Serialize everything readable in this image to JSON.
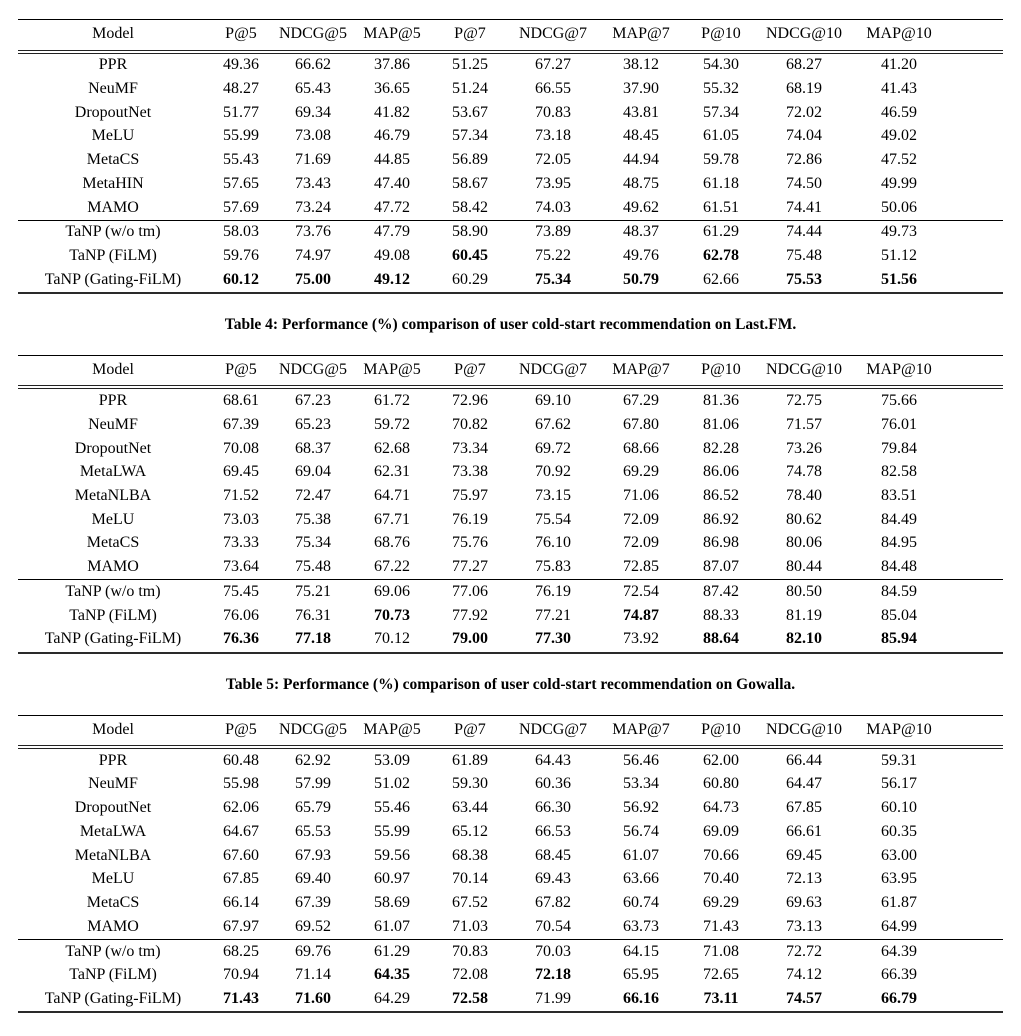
{
  "page": {
    "background": "#ffffff",
    "text_color": "#000000"
  },
  "columns": [
    "Model",
    "P@5",
    "NDCG@5",
    "MAP@5",
    "P@7",
    "NDCG@7",
    "MAP@7",
    "P@10",
    "NDCG@10",
    "MAP@10"
  ],
  "tables": [
    {
      "id": "lastfm",
      "caption": "Table 4: Performance (%) comparison of user cold-start recommendation on Last.FM.",
      "rows": [
        {
          "model": "PPR",
          "values": [
            "49.36",
            "66.62",
            "37.86",
            "51.25",
            "67.27",
            "38.12",
            "54.30",
            "68.27",
            "41.20"
          ],
          "bold": [],
          "rule_above": false
        },
        {
          "model": "NeuMF",
          "values": [
            "48.27",
            "65.43",
            "36.65",
            "51.24",
            "66.55",
            "37.90",
            "55.32",
            "68.19",
            "41.43"
          ],
          "bold": [],
          "rule_above": false
        },
        {
          "model": "DropoutNet",
          "values": [
            "51.77",
            "69.34",
            "41.82",
            "53.67",
            "70.83",
            "43.81",
            "57.34",
            "72.02",
            "46.59"
          ],
          "bold": [],
          "rule_above": false
        },
        {
          "model": "MeLU",
          "values": [
            "55.99",
            "73.08",
            "46.79",
            "57.34",
            "73.18",
            "48.45",
            "61.05",
            "74.04",
            "49.02"
          ],
          "bold": [],
          "rule_above": false
        },
        {
          "model": "MetaCS",
          "values": [
            "55.43",
            "71.69",
            "44.85",
            "56.89",
            "72.05",
            "44.94",
            "59.78",
            "72.86",
            "47.52"
          ],
          "bold": [],
          "rule_above": false
        },
        {
          "model": "MetaHIN",
          "values": [
            "57.65",
            "73.43",
            "47.40",
            "58.67",
            "73.95",
            "48.75",
            "61.18",
            "74.50",
            "49.99"
          ],
          "bold": [],
          "rule_above": false
        },
        {
          "model": "MAMO",
          "values": [
            "57.69",
            "73.24",
            "47.72",
            "58.42",
            "74.03",
            "49.62",
            "61.51",
            "74.41",
            "50.06"
          ],
          "bold": [],
          "rule_above": false
        },
        {
          "model": "TaNP (w/o tm)",
          "values": [
            "58.03",
            "73.76",
            "47.79",
            "58.90",
            "73.89",
            "48.37",
            "61.29",
            "74.44",
            "49.73"
          ],
          "bold": [],
          "rule_above": true
        },
        {
          "model": "TaNP (FiLM)",
          "values": [
            "59.76",
            "74.97",
            "49.08",
            "60.45",
            "75.22",
            "49.76",
            "62.78",
            "75.48",
            "51.12"
          ],
          "bold": [
            3,
            6
          ],
          "rule_above": false
        },
        {
          "model": "TaNP (Gating-FiLM)",
          "values": [
            "60.12",
            "75.00",
            "49.12",
            "60.29",
            "75.34",
            "50.79",
            "62.66",
            "75.53",
            "51.56"
          ],
          "bold": [
            0,
            1,
            2,
            4,
            5,
            7,
            8
          ],
          "rule_above": false
        }
      ]
    },
    {
      "id": "gowalla",
      "caption": "Table 5: Performance (%) comparison of user cold-start recommendation on Gowalla.",
      "rows": [
        {
          "model": "PPR",
          "values": [
            "68.61",
            "67.23",
            "61.72",
            "72.96",
            "69.10",
            "67.29",
            "81.36",
            "72.75",
            "75.66"
          ],
          "bold": [],
          "rule_above": false
        },
        {
          "model": "NeuMF",
          "values": [
            "67.39",
            "65.23",
            "59.72",
            "70.82",
            "67.62",
            "67.80",
            "81.06",
            "71.57",
            "76.01"
          ],
          "bold": [],
          "rule_above": false
        },
        {
          "model": "DropoutNet",
          "values": [
            "70.08",
            "68.37",
            "62.68",
            "73.34",
            "69.72",
            "68.66",
            "82.28",
            "73.26",
            "79.84"
          ],
          "bold": [],
          "rule_above": false
        },
        {
          "model": "MetaLWA",
          "values": [
            "69.45",
            "69.04",
            "62.31",
            "73.38",
            "70.92",
            "69.29",
            "86.06",
            "74.78",
            "82.58"
          ],
          "bold": [],
          "rule_above": false
        },
        {
          "model": "MetaNLBA",
          "values": [
            "71.52",
            "72.47",
            "64.71",
            "75.97",
            "73.15",
            "71.06",
            "86.52",
            "78.40",
            "83.51"
          ],
          "bold": [],
          "rule_above": false
        },
        {
          "model": "MeLU",
          "values": [
            "73.03",
            "75.38",
            "67.71",
            "76.19",
            "75.54",
            "72.09",
            "86.92",
            "80.62",
            "84.49"
          ],
          "bold": [],
          "rule_above": false
        },
        {
          "model": "MetaCS",
          "values": [
            "73.33",
            "75.34",
            "68.76",
            "75.76",
            "76.10",
            "72.09",
            "86.98",
            "80.06",
            "84.95"
          ],
          "bold": [],
          "rule_above": false
        },
        {
          "model": "MAMO",
          "values": [
            "73.64",
            "75.48",
            "67.22",
            "77.27",
            "75.83",
            "72.85",
            "87.07",
            "80.44",
            "84.48"
          ],
          "bold": [],
          "rule_above": false
        },
        {
          "model": "TaNP (w/o tm)",
          "values": [
            "75.45",
            "75.21",
            "69.06",
            "77.06",
            "76.19",
            "72.54",
            "87.42",
            "80.50",
            "84.59"
          ],
          "bold": [],
          "rule_above": true
        },
        {
          "model": "TaNP (FiLM)",
          "values": [
            "76.06",
            "76.31",
            "70.73",
            "77.92",
            "77.21",
            "74.87",
            "88.33",
            "81.19",
            "85.04"
          ],
          "bold": [
            2,
            5
          ],
          "rule_above": false
        },
        {
          "model": "TaNP (Gating-FiLM)",
          "values": [
            "76.36",
            "77.18",
            "70.12",
            "79.00",
            "77.30",
            "73.92",
            "88.64",
            "82.10",
            "85.94"
          ],
          "bold": [
            0,
            1,
            3,
            4,
            6,
            7,
            8
          ],
          "rule_above": false
        }
      ]
    },
    {
      "id": "third",
      "caption": "",
      "rows": [
        {
          "model": "PPR",
          "values": [
            "60.48",
            "62.92",
            "53.09",
            "61.89",
            "64.43",
            "56.46",
            "62.00",
            "66.44",
            "59.31"
          ],
          "bold": [],
          "rule_above": false
        },
        {
          "model": "NeuMF",
          "values": [
            "55.98",
            "57.99",
            "51.02",
            "59.30",
            "60.36",
            "53.34",
            "60.80",
            "64.47",
            "56.17"
          ],
          "bold": [],
          "rule_above": false
        },
        {
          "model": "DropoutNet",
          "values": [
            "62.06",
            "65.79",
            "55.46",
            "63.44",
            "66.30",
            "56.92",
            "64.73",
            "67.85",
            "60.10"
          ],
          "bold": [],
          "rule_above": false
        },
        {
          "model": "MetaLWA",
          "values": [
            "64.67",
            "65.53",
            "55.99",
            "65.12",
            "66.53",
            "56.74",
            "69.09",
            "66.61",
            "60.35"
          ],
          "bold": [],
          "rule_above": false
        },
        {
          "model": "MetaNLBA",
          "values": [
            "67.60",
            "67.93",
            "59.56",
            "68.38",
            "68.45",
            "61.07",
            "70.66",
            "69.45",
            "63.00"
          ],
          "bold": [],
          "rule_above": false
        },
        {
          "model": "MeLU",
          "values": [
            "67.85",
            "69.40",
            "60.97",
            "70.14",
            "69.43",
            "63.66",
            "70.40",
            "72.13",
            "63.95"
          ],
          "bold": [],
          "rule_above": false
        },
        {
          "model": "MetaCS",
          "values": [
            "66.14",
            "67.39",
            "58.69",
            "67.52",
            "67.82",
            "60.74",
            "69.29",
            "69.63",
            "61.87"
          ],
          "bold": [],
          "rule_above": false
        },
        {
          "model": "MAMO",
          "values": [
            "67.97",
            "69.52",
            "61.07",
            "71.03",
            "70.54",
            "63.73",
            "71.43",
            "73.13",
            "64.99"
          ],
          "bold": [],
          "rule_above": false
        },
        {
          "model": "TaNP (w/o tm)",
          "values": [
            "68.25",
            "69.76",
            "61.29",
            "70.83",
            "70.03",
            "64.15",
            "71.08",
            "72.72",
            "64.39"
          ],
          "bold": [],
          "rule_above": true
        },
        {
          "model": "TaNP (FiLM)",
          "values": [
            "70.94",
            "71.14",
            "64.35",
            "72.08",
            "72.18",
            "65.95",
            "72.65",
            "74.12",
            "66.39"
          ],
          "bold": [
            2,
            4
          ],
          "rule_above": false
        },
        {
          "model": "TaNP (Gating-FiLM)",
          "values": [
            "71.43",
            "71.60",
            "64.29",
            "72.58",
            "71.99",
            "66.16",
            "73.11",
            "74.57",
            "66.79"
          ],
          "bold": [
            0,
            1,
            3,
            5,
            6,
            7,
            8
          ],
          "rule_above": false
        }
      ]
    }
  ]
}
